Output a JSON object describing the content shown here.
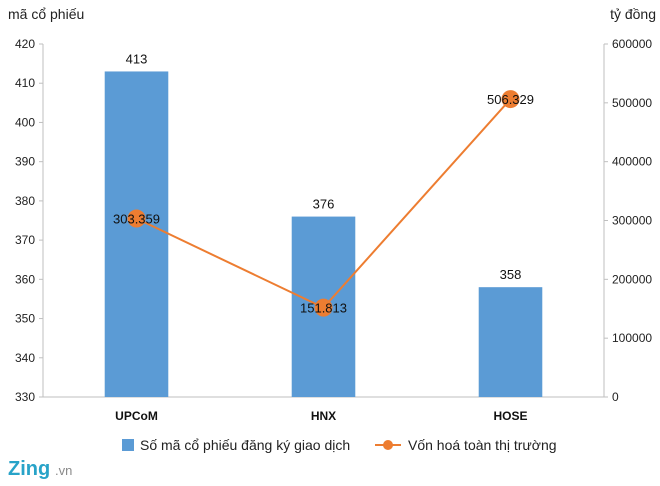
{
  "chart_data": {
    "type": "bar+line",
    "categories": [
      "UPCoM",
      "HNX",
      "HOSE"
    ],
    "left_axis": {
      "unit_label": "mã cổ phiếu",
      "min": 330,
      "max": 420,
      "step": 10
    },
    "right_axis": {
      "unit_label": "tỷ đồng",
      "min": 0,
      "max": 600000,
      "step": 100000
    },
    "series": [
      {
        "name": "Số mã cổ phiếu đăng ký giao dịch",
        "type": "bar",
        "axis": "left",
        "color": "#5b9bd5",
        "values": [
          413,
          376,
          358
        ],
        "data_labels": [
          "413",
          "376",
          "358"
        ]
      },
      {
        "name": "Vốn hoá toàn thị trường",
        "type": "line",
        "axis": "right",
        "color": "#ed7d31",
        "values": [
          303359,
          151813,
          506329
        ],
        "data_labels": [
          "303.359",
          "151.813",
          "506.329"
        ]
      }
    ],
    "legend_position": "bottom",
    "grid": false
  },
  "logo": {
    "brand": "Zing",
    "suffix": ".vn"
  }
}
